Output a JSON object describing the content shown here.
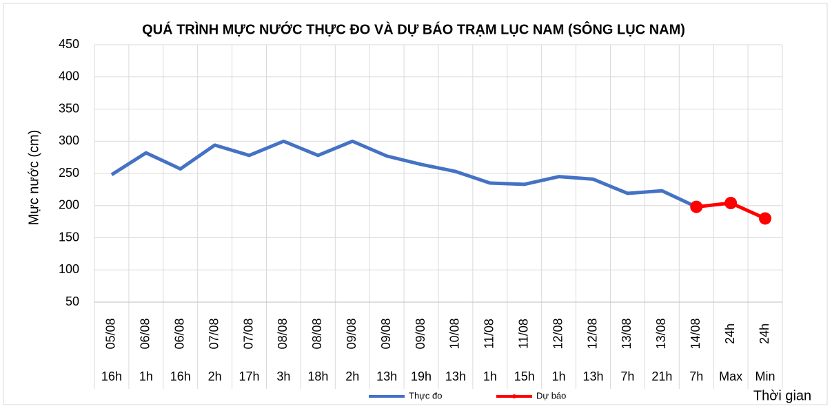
{
  "chart_data": {
    "type": "line",
    "title": "QUÁ TRÌNH MỰC NƯỚC THỰC ĐO VÀ DỰ BÁO TRẠM LỤC NAM (SÔNG LỤC NAM)",
    "y_label": "Mực nước (cm)",
    "x_label": "Thời gian",
    "categories": [
      [
        "05/08",
        "16h"
      ],
      [
        "06/08",
        "1h"
      ],
      [
        "06/08",
        "16h"
      ],
      [
        "07/08",
        "2h"
      ],
      [
        "07/08",
        "17h"
      ],
      [
        "08/08",
        "3h"
      ],
      [
        "08/08",
        "18h"
      ],
      [
        "09/08",
        "2h"
      ],
      [
        "09/08",
        "13h"
      ],
      [
        "09/08",
        "19h"
      ],
      [
        "10/08",
        "13h"
      ],
      [
        "11/08",
        "1h"
      ],
      [
        "11/08",
        "15h"
      ],
      [
        "12/08",
        "1h"
      ],
      [
        "12/08",
        "13h"
      ],
      [
        "13/08",
        "7h"
      ],
      [
        "13/08",
        "21h"
      ],
      [
        "14/08",
        "7h"
      ],
      [
        "24h",
        "Max"
      ],
      [
        "24h",
        "Min"
      ]
    ],
    "series": [
      {
        "name": "Thực đo",
        "color": "#4472c4",
        "values": [
          248,
          282,
          257,
          294,
          278,
          300,
          278,
          300,
          277,
          264,
          253,
          235,
          233,
          245,
          241,
          219,
          223,
          198,
          null,
          null
        ]
      },
      {
        "name": "Dự báo",
        "color": "#ff0000",
        "values": [
          null,
          null,
          null,
          null,
          null,
          null,
          null,
          null,
          null,
          null,
          null,
          null,
          null,
          null,
          null,
          null,
          null,
          198,
          204,
          180
        ]
      }
    ],
    "ylim": [
      50,
      450
    ],
    "yticks": [
      50,
      100,
      150,
      200,
      250,
      300,
      350,
      400,
      450
    ],
    "grid": true,
    "legend": "bottom"
  }
}
